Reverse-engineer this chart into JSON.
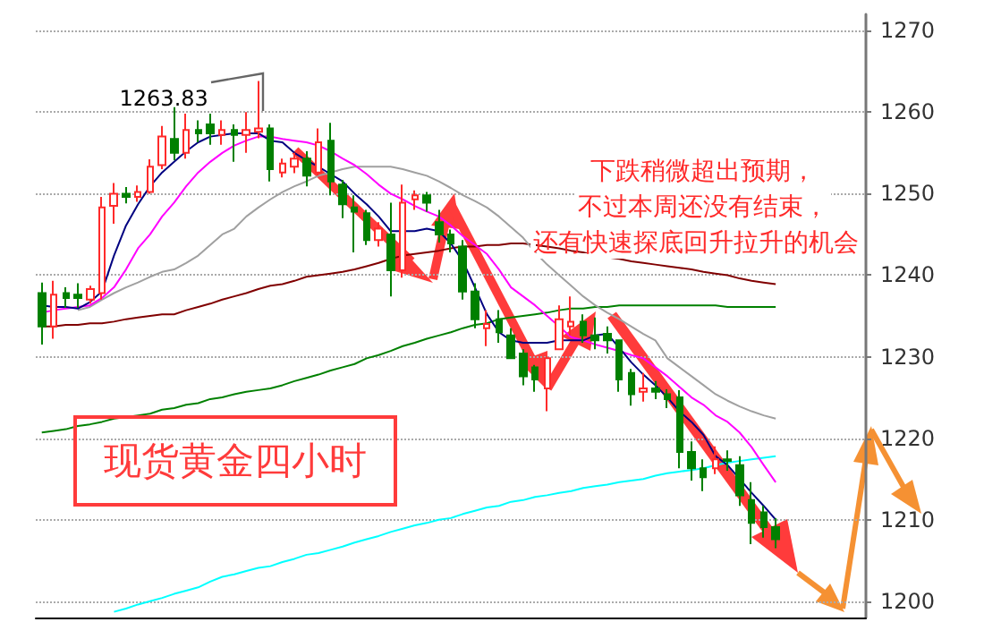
{
  "chart_data": {
    "type": "candlestick",
    "title": "现货黄金四小时",
    "categories": [
      null,
      null,
      null,
      null,
      null,
      null,
      null,
      null,
      null,
      null,
      null,
      null,
      null,
      null,
      null,
      null,
      null,
      null,
      null,
      null,
      null,
      null,
      null,
      null,
      null,
      null,
      null,
      null,
      null,
      null,
      null,
      null,
      null,
      null,
      null,
      null,
      null,
      null,
      null,
      null,
      null,
      null,
      null,
      null,
      null,
      null,
      null,
      null,
      null,
      null,
      null,
      null,
      null,
      null,
      null,
      null,
      null,
      null,
      null,
      null,
      null,
      null,
      null,
      null,
      null,
      null,
      null,
      null,
      null
    ],
    "colors": [
      "#008000",
      "#ff2a2a",
      "#008000",
      "#008000",
      "#ff2a2a",
      "#ff2a2a",
      "#ff2a2a",
      "#008000",
      "#ff2a2a",
      "#ff2a2a",
      "#ff2a2a",
      "#008000",
      "#ff2a2a",
      "#008000",
      "#008000",
      "#ff2a2a",
      "#008000",
      "#ff2a2a",
      "#ff2a2a",
      "#008000",
      "#ff2a2a",
      "#ff2a2a",
      "#008000",
      "#ff2a2a",
      "#008000",
      "#008000",
      "#008000",
      "#008000",
      "#ff2a2a",
      "#008000",
      "#ff2a2a",
      "#ff2a2a",
      "#008000",
      "#008000",
      "#008000",
      "#008000",
      "#008000",
      "#ff2a2a",
      "#008000",
      "#008000",
      "#008000",
      "#008000",
      "#ff2a2a",
      "#ff2a2a",
      "#ff2a2a",
      "#008000",
      "#008000",
      "#008000",
      "#008000",
      "#008000",
      "#ff2a2a",
      "#008000",
      "#008000",
      "#008000",
      "#008000",
      "#008000",
      "#ff2a2a",
      "#008000",
      "#008000",
      "#008000",
      "#008000",
      "#008000",
      null,
      null,
      null,
      null,
      null,
      null,
      null
    ],
    "ohlc": [
      [
        1237.8,
        1239.1,
        1231.5,
        1233.7
      ],
      [
        1233.7,
        1239.3,
        1232.2,
        1237.6
      ],
      [
        1237.8,
        1238.5,
        1236.0,
        1237.2
      ],
      [
        1237.6,
        1239.0,
        1236.0,
        1237.2
      ],
      [
        1237.0,
        1238.7,
        1236.5,
        1238.3
      ],
      [
        1237.8,
        1249.6,
        1237.0,
        1248.3
      ],
      [
        1248.5,
        1251.3,
        1246.3,
        1250.0
      ],
      [
        1250.0,
        1250.8,
        1248.8,
        1249.6
      ],
      [
        1249.6,
        1251.0,
        1249.0,
        1250.2
      ],
      [
        1250.2,
        1254.2,
        1250.0,
        1253.3
      ],
      [
        1253.5,
        1258.3,
        1253.0,
        1257.0
      ],
      [
        1256.7,
        1260.6,
        1254.1,
        1255.0
      ],
      [
        1255.0,
        1259.8,
        1254.3,
        1257.8
      ],
      [
        1257.8,
        1259.0,
        1256.3,
        1257.4
      ],
      [
        1258.5,
        1259.8,
        1256.0,
        1257.4
      ],
      [
        1257.2,
        1259.0,
        1256.0,
        1257.8
      ],
      [
        1257.8,
        1258.5,
        1253.9,
        1257.2
      ],
      [
        1257.2,
        1260.0,
        1255.0,
        1257.8
      ],
      [
        1257.6,
        1263.83,
        1256.8,
        1258.0
      ],
      [
        1258.0,
        1258.5,
        1251.5,
        1253.0
      ],
      [
        1252.6,
        1254.3,
        1252.0,
        1253.7
      ],
      [
        1253.3,
        1255.0,
        1252.5,
        1254.3
      ],
      [
        1254.3,
        1255.2,
        1250.9,
        1252.2
      ],
      [
        1252.6,
        1258.0,
        1252.2,
        1256.3
      ],
      [
        1256.5,
        1258.7,
        1249.8,
        1251.5
      ],
      [
        1251.1,
        1251.7,
        1247.0,
        1248.7
      ],
      [
        1248.3,
        1249.8,
        1242.8,
        1247.8
      ],
      [
        1247.6,
        1248.0,
        1243.7,
        1244.3
      ],
      [
        1244.3,
        1246.5,
        1243.5,
        1245.7
      ],
      [
        1245.0,
        1248.9,
        1237.4,
        1240.6
      ],
      [
        1240.6,
        1251.1,
        1239.7,
        1248.9
      ],
      [
        1249.3,
        1250.4,
        1248.0,
        1249.8
      ],
      [
        1249.8,
        1250.2,
        1247.8,
        1248.9
      ],
      [
        1246.5,
        1248.0,
        1244.0,
        1245.0
      ],
      [
        1245.0,
        1245.6,
        1242.8,
        1243.9
      ],
      [
        1243.5,
        1244.3,
        1237.0,
        1238.0
      ],
      [
        1238.0,
        1239.0,
        1233.5,
        1234.6
      ],
      [
        1233.5,
        1235.7,
        1231.3,
        1234.0
      ],
      [
        1234.6,
        1235.7,
        1231.7,
        1233.0
      ],
      [
        1232.6,
        1233.5,
        1229.8,
        1229.8
      ],
      [
        1230.4,
        1230.9,
        1226.5,
        1227.6
      ],
      [
        1228.7,
        1229.0,
        1225.7,
        1227.2
      ],
      [
        1226.1,
        1229.8,
        1223.3,
        1229.8
      ],
      [
        1230.9,
        1236.3,
        1230.9,
        1234.6
      ],
      [
        1233.7,
        1237.4,
        1232.6,
        1234.3
      ],
      [
        1234.3,
        1235.2,
        1231.7,
        1232.6
      ],
      [
        1232.6,
        1234.8,
        1230.9,
        1232.0
      ],
      [
        1232.8,
        1233.7,
        1230.4,
        1232.0
      ],
      [
        1232.0,
        1232.0,
        1225.7,
        1227.2
      ],
      [
        1228.0,
        1228.5,
        1224.0,
        1225.4
      ],
      [
        1225.7,
        1228.0,
        1224.5,
        1226.1
      ],
      [
        1226.1,
        1227.0,
        1224.8,
        1225.7
      ],
      [
        1225.4,
        1226.0,
        1223.7,
        1224.8
      ],
      [
        1225.0,
        1225.9,
        1216.3,
        1218.3
      ],
      [
        1218.3,
        1219.6,
        1214.8,
        1216.3
      ],
      [
        1216.3,
        1217.4,
        1213.5,
        1215.2
      ],
      [
        1216.3,
        1219.0,
        1215.6,
        1217.4
      ],
      [
        1217.4,
        1218.5,
        1216.0,
        1217.2
      ],
      [
        1216.7,
        1217.8,
        1211.7,
        1213.0
      ],
      [
        1212.4,
        1214.6,
        1207.0,
        1209.6
      ],
      [
        1210.9,
        1211.7,
        1207.8,
        1209.1
      ],
      [
        1209.1,
        1210.2,
        1206.5,
        1207.6
      ],
      null,
      null,
      null,
      null,
      null,
      null,
      null
    ],
    "series": [
      {
        "type": "line",
        "color": "#00ffff",
        "values": [
          null,
          null,
          null,
          null,
          null,
          null,
          1198.7,
          1199.1,
          1199.6,
          1200.0,
          1200.4,
          1200.9,
          1201.3,
          1201.7,
          1202.4,
          1203.0,
          1203.3,
          1203.7,
          1204.1,
          1204.3,
          1204.8,
          1205.2,
          1205.7,
          1205.9,
          1206.3,
          1206.7,
          1207.2,
          1207.6,
          1208.0,
          1208.5,
          1208.9,
          1209.3,
          1209.6,
          1210.0,
          1210.2,
          1210.7,
          1211.1,
          1211.5,
          1211.7,
          1212.2,
          1212.4,
          1212.8,
          1213.0,
          1213.3,
          1213.5,
          1213.9,
          1214.1,
          1214.3,
          1214.6,
          1214.8,
          1215.0,
          1215.4,
          1215.7,
          1215.9,
          1216.1,
          1216.3,
          1216.7,
          1217.0,
          1217.2,
          1217.4,
          1217.6,
          1217.8,
          null,
          null,
          null,
          null,
          null,
          null,
          null
        ]
      },
      {
        "type": "line",
        "color": "#008000",
        "values": [
          1220.7,
          1220.9,
          1221.1,
          1221.5,
          1221.7,
          1222.0,
          1222.4,
          1222.6,
          1222.8,
          1223.0,
          1223.5,
          1223.7,
          1224.1,
          1224.3,
          1224.8,
          1225.0,
          1225.4,
          1225.7,
          1225.9,
          1226.1,
          1226.5,
          1227.0,
          1227.4,
          1227.8,
          1228.3,
          1228.7,
          1229.1,
          1229.8,
          1230.2,
          1230.7,
          1231.3,
          1231.7,
          1232.2,
          1232.6,
          1233.0,
          1233.5,
          1233.9,
          1234.1,
          1234.6,
          1234.8,
          1235.0,
          1235.2,
          1235.4,
          1235.7,
          1235.9,
          1235.9,
          1236.1,
          1236.1,
          1236.3,
          1236.3,
          1236.3,
          1236.3,
          1236.3,
          1236.3,
          1236.3,
          1236.3,
          1236.3,
          1236.1,
          1236.1,
          1236.1,
          1236.1,
          1236.1,
          null,
          null,
          null,
          null,
          null,
          null,
          null
        ]
      },
      {
        "type": "line",
        "color": "#800000",
        "values": [
          1233.7,
          1233.7,
          1233.9,
          1233.9,
          1234.1,
          1234.1,
          1234.3,
          1234.6,
          1234.8,
          1235.0,
          1235.2,
          1235.2,
          1235.7,
          1236.1,
          1236.5,
          1237.0,
          1237.4,
          1237.8,
          1238.3,
          1238.7,
          1238.9,
          1239.3,
          1239.8,
          1240.0,
          1240.2,
          1240.4,
          1240.7,
          1241.1,
          1241.5,
          1242.0,
          1242.4,
          1242.6,
          1242.8,
          1243.0,
          1243.3,
          1243.5,
          1243.5,
          1243.7,
          1243.7,
          1243.9,
          1243.9,
          1243.7,
          1243.5,
          1243.3,
          1243.0,
          1242.8,
          1242.4,
          1242.2,
          1242.0,
          1241.7,
          1241.5,
          1241.3,
          1241.1,
          1240.9,
          1240.7,
          1240.4,
          1240.2,
          1240.0,
          1239.6,
          1239.3,
          1239.1,
          1238.9,
          null,
          null,
          null,
          null,
          null,
          null,
          null
        ]
      },
      {
        "type": "line",
        "color": "#a0a0a0",
        "values": [
          null,
          null,
          null,
          1235.7,
          1236.1,
          1237.0,
          1237.8,
          1238.5,
          1239.1,
          1239.8,
          1240.4,
          1240.7,
          1241.5,
          1242.4,
          1243.7,
          1245.0,
          1245.7,
          1247.2,
          1248.3,
          1249.3,
          1250.2,
          1250.9,
          1251.5,
          1252.2,
          1252.6,
          1253.0,
          1253.3,
          1253.3,
          1253.3,
          1253.3,
          1253.0,
          1252.6,
          1252.2,
          1251.5,
          1250.7,
          1249.8,
          1249.1,
          1248.3,
          1247.2,
          1245.9,
          1244.6,
          1242.8,
          1241.3,
          1240.0,
          1238.7,
          1237.4,
          1236.3,
          1235.4,
          1234.6,
          1233.7,
          1232.8,
          1232.0,
          1229.8,
          1228.7,
          1227.6,
          1226.5,
          1225.4,
          1224.6,
          1223.9,
          1223.3,
          1222.8,
          1222.4,
          null,
          null,
          null,
          null,
          null,
          null,
          null
        ]
      },
      {
        "type": "line",
        "color": "#ff00ff",
        "values": [
          1235.4,
          1235.7,
          1235.9,
          1236.1,
          1236.3,
          1237.2,
          1238.5,
          1240.7,
          1243.3,
          1245.0,
          1247.2,
          1248.9,
          1250.9,
          1252.6,
          1253.9,
          1255.0,
          1255.9,
          1256.5,
          1257.0,
          1257.0,
          1256.7,
          1256.5,
          1256.3,
          1255.9,
          1255.2,
          1254.3,
          1253.5,
          1252.4,
          1251.1,
          1250.0,
          1249.3,
          1248.5,
          1247.8,
          1247.2,
          1246.1,
          1244.8,
          1243.7,
          1242.6,
          1240.7,
          1238.5,
          1237.4,
          1236.3,
          1235.0,
          1233.7,
          1232.4,
          1232.0,
          1231.5,
          1231.1,
          1230.7,
          1230.2,
          1229.8,
          1228.7,
          1227.6,
          1226.3,
          1225.0,
          1224.1,
          1222.8,
          1222.0,
          1220.7,
          1218.9,
          1216.7,
          1214.6,
          null,
          null,
          null,
          null,
          null,
          null,
          null
        ]
      },
      {
        "type": "line",
        "color": "#000080",
        "values": [
          1236.3,
          1236.1,
          1236.1,
          1235.9,
          1236.7,
          1238.0,
          1242.4,
          1246.1,
          1248.7,
          1250.9,
          1252.6,
          1253.9,
          1255.2,
          1256.3,
          1257.0,
          1257.2,
          1257.4,
          1257.4,
          1257.4,
          1256.5,
          1256.3,
          1255.0,
          1254.1,
          1253.3,
          1252.4,
          1251.5,
          1250.0,
          1248.7,
          1247.2,
          1245.4,
          1245.4,
          1245.4,
          1245.7,
          1245.4,
          1243.9,
          1241.7,
          1238.5,
          1235.2,
          1233.0,
          1232.0,
          1231.7,
          1231.7,
          1231.7,
          1232.0,
          1232.0,
          1232.0,
          1232.6,
          1232.8,
          1231.1,
          1229.3,
          1227.8,
          1226.5,
          1225.0,
          1223.3,
          1222.0,
          1220.4,
          1217.8,
          1216.7,
          1215.0,
          1213.3,
          1211.7,
          1210.0,
          null,
          null,
          null,
          null,
          null,
          null,
          null
        ]
      }
    ],
    "annotations": [
      "1263.83",
      "下跌稍微超出预期，",
      "不过本周还没有结束，",
      "还有快速探底回升拉升的机会"
    ],
    "ylim": [
      1198,
      1272
    ],
    "yticks": [
      1200,
      1210,
      1220,
      1230,
      1240,
      1250,
      1260,
      1270
    ],
    "grid": "y",
    "tick_labels": "y"
  }
}
